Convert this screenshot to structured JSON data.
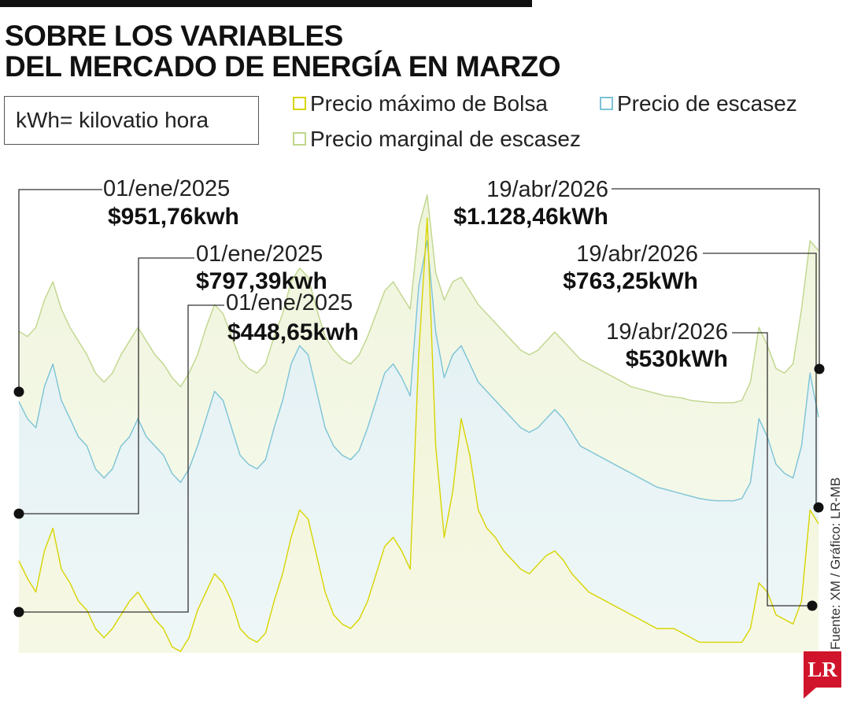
{
  "header": {
    "title_line1": "SOBRE LOS VARIABLES",
    "title_line2": "DEL MERCADO DE ENERGÍA EN MARZO",
    "unit_note": "kWh= kilovatio hora"
  },
  "legend": [
    {
      "label": "Precio máximo de Bolsa",
      "color": "#d8d400"
    },
    {
      "label": "Precio de escasez",
      "color": "#7cc3d6"
    },
    {
      "label": "Precio marginal de escasez",
      "color": "#bfd68c"
    }
  ],
  "source": "Fuente: XM / Gráfico: LR-MB",
  "logo_text": "LR",
  "chart_data": {
    "type": "line",
    "x_start": "01/ene/2025",
    "x_end": "19/abr/2026",
    "unit": "kWh",
    "annotations": [
      {
        "date": "01/ene/2025",
        "value_label": "$951,76kwh",
        "series": "Precio marginal de escasez",
        "value": 951.76
      },
      {
        "date": "01/ene/2025",
        "value_label": "$797,39kwh",
        "series": "Precio de escasez",
        "value": 797.39
      },
      {
        "date": "01/ene/2025",
        "value_label": "$448,65kwh",
        "series": "Precio máximo de Bolsa",
        "value": 448.65
      },
      {
        "date": "19/abr/2026",
        "value_label": "$1.128,46kWh",
        "series": "Precio marginal de escasez",
        "value": 1128.46
      },
      {
        "date": "19/abr/2026",
        "value_label": "$763,25kWh",
        "series": "Precio de escasez",
        "value": 763.25
      },
      {
        "date": "19/abr/2026",
        "value_label": "$530kWh",
        "series": "Precio máximo de Bolsa",
        "value": 530
      }
    ],
    "series": [
      {
        "name": "Precio máximo de Bolsa",
        "color": "#d8d400",
        "values": [
          448.65,
          410,
          380,
          470,
          520,
          430,
          400,
          360,
          340,
          300,
          280,
          300,
          330,
          360,
          380,
          350,
          320,
          300,
          260,
          250,
          280,
          340,
          380,
          420,
          400,
          360,
          300,
          280,
          270,
          290,
          360,
          420,
          500,
          560,
          540,
          460,
          380,
          330,
          310,
          300,
          320,
          360,
          420,
          480,
          500,
          470,
          430,
          900,
          1200,
          700,
          500,
          600,
          760,
          680,
          560,
          520,
          500,
          470,
          450,
          430,
          420,
          440,
          460,
          470,
          450,
          420,
          400,
          380,
          370,
          360,
          350,
          340,
          330,
          320,
          310,
          300,
          300,
          300,
          290,
          280,
          270,
          270,
          270,
          270,
          270,
          270,
          300,
          400,
          380,
          330,
          320,
          310,
          360,
          560,
          530
        ]
      },
      {
        "name": "Precio de escasez",
        "color": "#7cc3d6",
        "values": [
          797.39,
          760,
          740,
          830,
          880,
          800,
          760,
          720,
          700,
          650,
          630,
          650,
          700,
          720,
          760,
          720,
          700,
          680,
          640,
          620,
          650,
          700,
          760,
          820,
          800,
          740,
          680,
          660,
          650,
          670,
          740,
          800,
          880,
          920,
          900,
          820,
          740,
          700,
          680,
          670,
          690,
          740,
          800,
          860,
          880,
          850,
          810,
          1050,
          1150,
          950,
          850,
          900,
          920,
          880,
          840,
          820,
          800,
          780,
          760,
          740,
          730,
          740,
          760,
          780,
          760,
          730,
          700,
          690,
          680,
          670,
          660,
          650,
          640,
          630,
          620,
          610,
          605,
          600,
          595,
          590,
          585,
          582,
          580,
          580,
          580,
          585,
          620,
          760,
          720,
          660,
          640,
          630,
          700,
          860,
          763.25
        ]
      },
      {
        "name": "Precio marginal de escasez",
        "color": "#bfd68c",
        "values": [
          951.76,
          940,
          960,
          1020,
          1060,
          1000,
          960,
          930,
          900,
          860,
          840,
          860,
          900,
          930,
          960,
          930,
          900,
          880,
          850,
          830,
          860,
          900,
          960,
          1010,
          990,
          940,
          890,
          870,
          860,
          880,
          940,
          990,
          1060,
          1090,
          1070,
          1000,
          940,
          910,
          890,
          880,
          900,
          940,
          990,
          1040,
          1060,
          1030,
          1000,
          1180,
          1250,
          1080,
          1020,
          1060,
          1070,
          1040,
          1010,
          990,
          970,
          950,
          930,
          910,
          900,
          910,
          930,
          950,
          930,
          910,
          890,
          880,
          870,
          860,
          850,
          840,
          830,
          825,
          820,
          815,
          810,
          808,
          805,
          800,
          798,
          796,
          795,
          795,
          795,
          800,
          840,
          960,
          920,
          870,
          860,
          880,
          1000,
          1150,
          1128.46
        ]
      }
    ]
  }
}
